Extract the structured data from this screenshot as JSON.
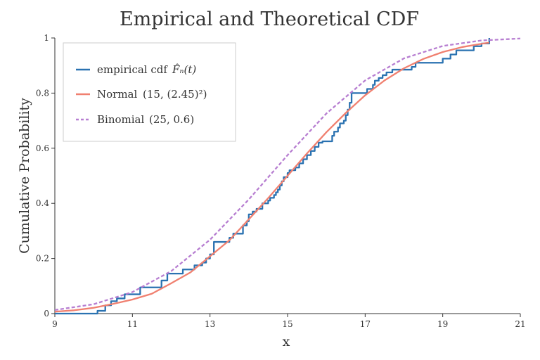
{
  "chart_data": {
    "type": "line",
    "title": "Empirical and Theoretical CDF",
    "xlabel": "x",
    "ylabel": "Cumulative Probability",
    "xlim": [
      9,
      21
    ],
    "ylim": [
      0,
      1
    ],
    "x_ticks": [
      9,
      11,
      13,
      15,
      17,
      19,
      21
    ],
    "y_ticks": [
      0,
      0.2,
      0.4,
      0.6,
      0.8,
      1
    ],
    "x_tick_labels": [
      "9",
      "11",
      "13",
      "15",
      "17",
      "19",
      "21"
    ],
    "y_tick_labels": [
      "0",
      "0.2",
      "0.4",
      "0.6",
      "0.8",
      "1"
    ],
    "grid": false,
    "legend_position": "top-left",
    "legend": [
      {
        "name": "empirical cdf",
        "math": "F̂ₙ(t)",
        "color": "#2a72b1",
        "style": "solid"
      },
      {
        "name": "Normal",
        "math": "(15, (2.45)²)",
        "color": "#f08070",
        "style": "solid"
      },
      {
        "name": "Binomial",
        "math": "(25, 0.6)",
        "color": "#b77ed1",
        "style": "dashed"
      }
    ],
    "series": [
      {
        "name": "empirical cdf",
        "kind": "step",
        "color": "#2a72b1",
        "x": [
          9.0,
          10.1,
          10.3,
          10.45,
          10.6,
          10.8,
          11.2,
          11.75,
          11.9,
          12.3,
          12.6,
          12.8,
          12.9,
          13.0,
          13.1,
          13.5,
          13.6,
          13.85,
          13.95,
          14.0,
          14.1,
          14.2,
          14.35,
          14.5,
          14.55,
          14.65,
          14.7,
          14.75,
          14.8,
          14.85,
          14.9,
          15.0,
          15.05,
          15.2,
          15.3,
          15.4,
          15.5,
          15.6,
          15.7,
          15.8,
          15.9,
          16.15,
          16.2,
          16.3,
          16.35,
          16.45,
          16.5,
          16.55,
          16.6,
          16.65,
          17.05,
          17.2,
          17.25,
          17.35,
          17.45,
          17.55,
          17.7,
          18.2,
          18.3,
          19.0,
          19.2,
          19.35,
          19.8,
          20.0,
          20.2
        ],
        "y": [
          0.0,
          0.01,
          0.03,
          0.045,
          0.055,
          0.07,
          0.095,
          0.12,
          0.145,
          0.16,
          0.175,
          0.185,
          0.2,
          0.215,
          0.26,
          0.275,
          0.29,
          0.32,
          0.335,
          0.36,
          0.37,
          0.38,
          0.4,
          0.41,
          0.42,
          0.43,
          0.44,
          0.45,
          0.465,
          0.48,
          0.495,
          0.51,
          0.52,
          0.53,
          0.545,
          0.56,
          0.575,
          0.59,
          0.605,
          0.62,
          0.625,
          0.645,
          0.66,
          0.675,
          0.69,
          0.7,
          0.72,
          0.74,
          0.765,
          0.8,
          0.815,
          0.83,
          0.845,
          0.855,
          0.865,
          0.875,
          0.885,
          0.895,
          0.91,
          0.925,
          0.94,
          0.955,
          0.97,
          0.98,
          1.0
        ]
      },
      {
        "name": "Normal",
        "kind": "line",
        "color": "#f08070",
        "x": [
          9,
          9.5,
          10,
          10.5,
          11,
          11.5,
          12,
          12.5,
          13,
          13.5,
          14,
          14.5,
          15,
          15.5,
          16,
          16.5,
          17,
          17.5,
          18,
          18.5,
          19,
          19.5,
          20,
          20.2
        ],
        "y": [
          0.007,
          0.012,
          0.021,
          0.035,
          0.051,
          0.072,
          0.11,
          0.15,
          0.208,
          0.266,
          0.342,
          0.419,
          0.5,
          0.581,
          0.658,
          0.728,
          0.792,
          0.846,
          0.89,
          0.924,
          0.949,
          0.967,
          0.979,
          0.983
        ]
      },
      {
        "name": "Binomial",
        "kind": "line",
        "color": "#b77ed1",
        "x": [
          9,
          10,
          11,
          12,
          13,
          14,
          15,
          16,
          17,
          18,
          19,
          20,
          21
        ],
        "y": [
          0.013,
          0.034,
          0.078,
          0.154,
          0.268,
          0.414,
          0.575,
          0.726,
          0.846,
          0.926,
          0.971,
          0.991,
          0.998
        ]
      }
    ]
  }
}
